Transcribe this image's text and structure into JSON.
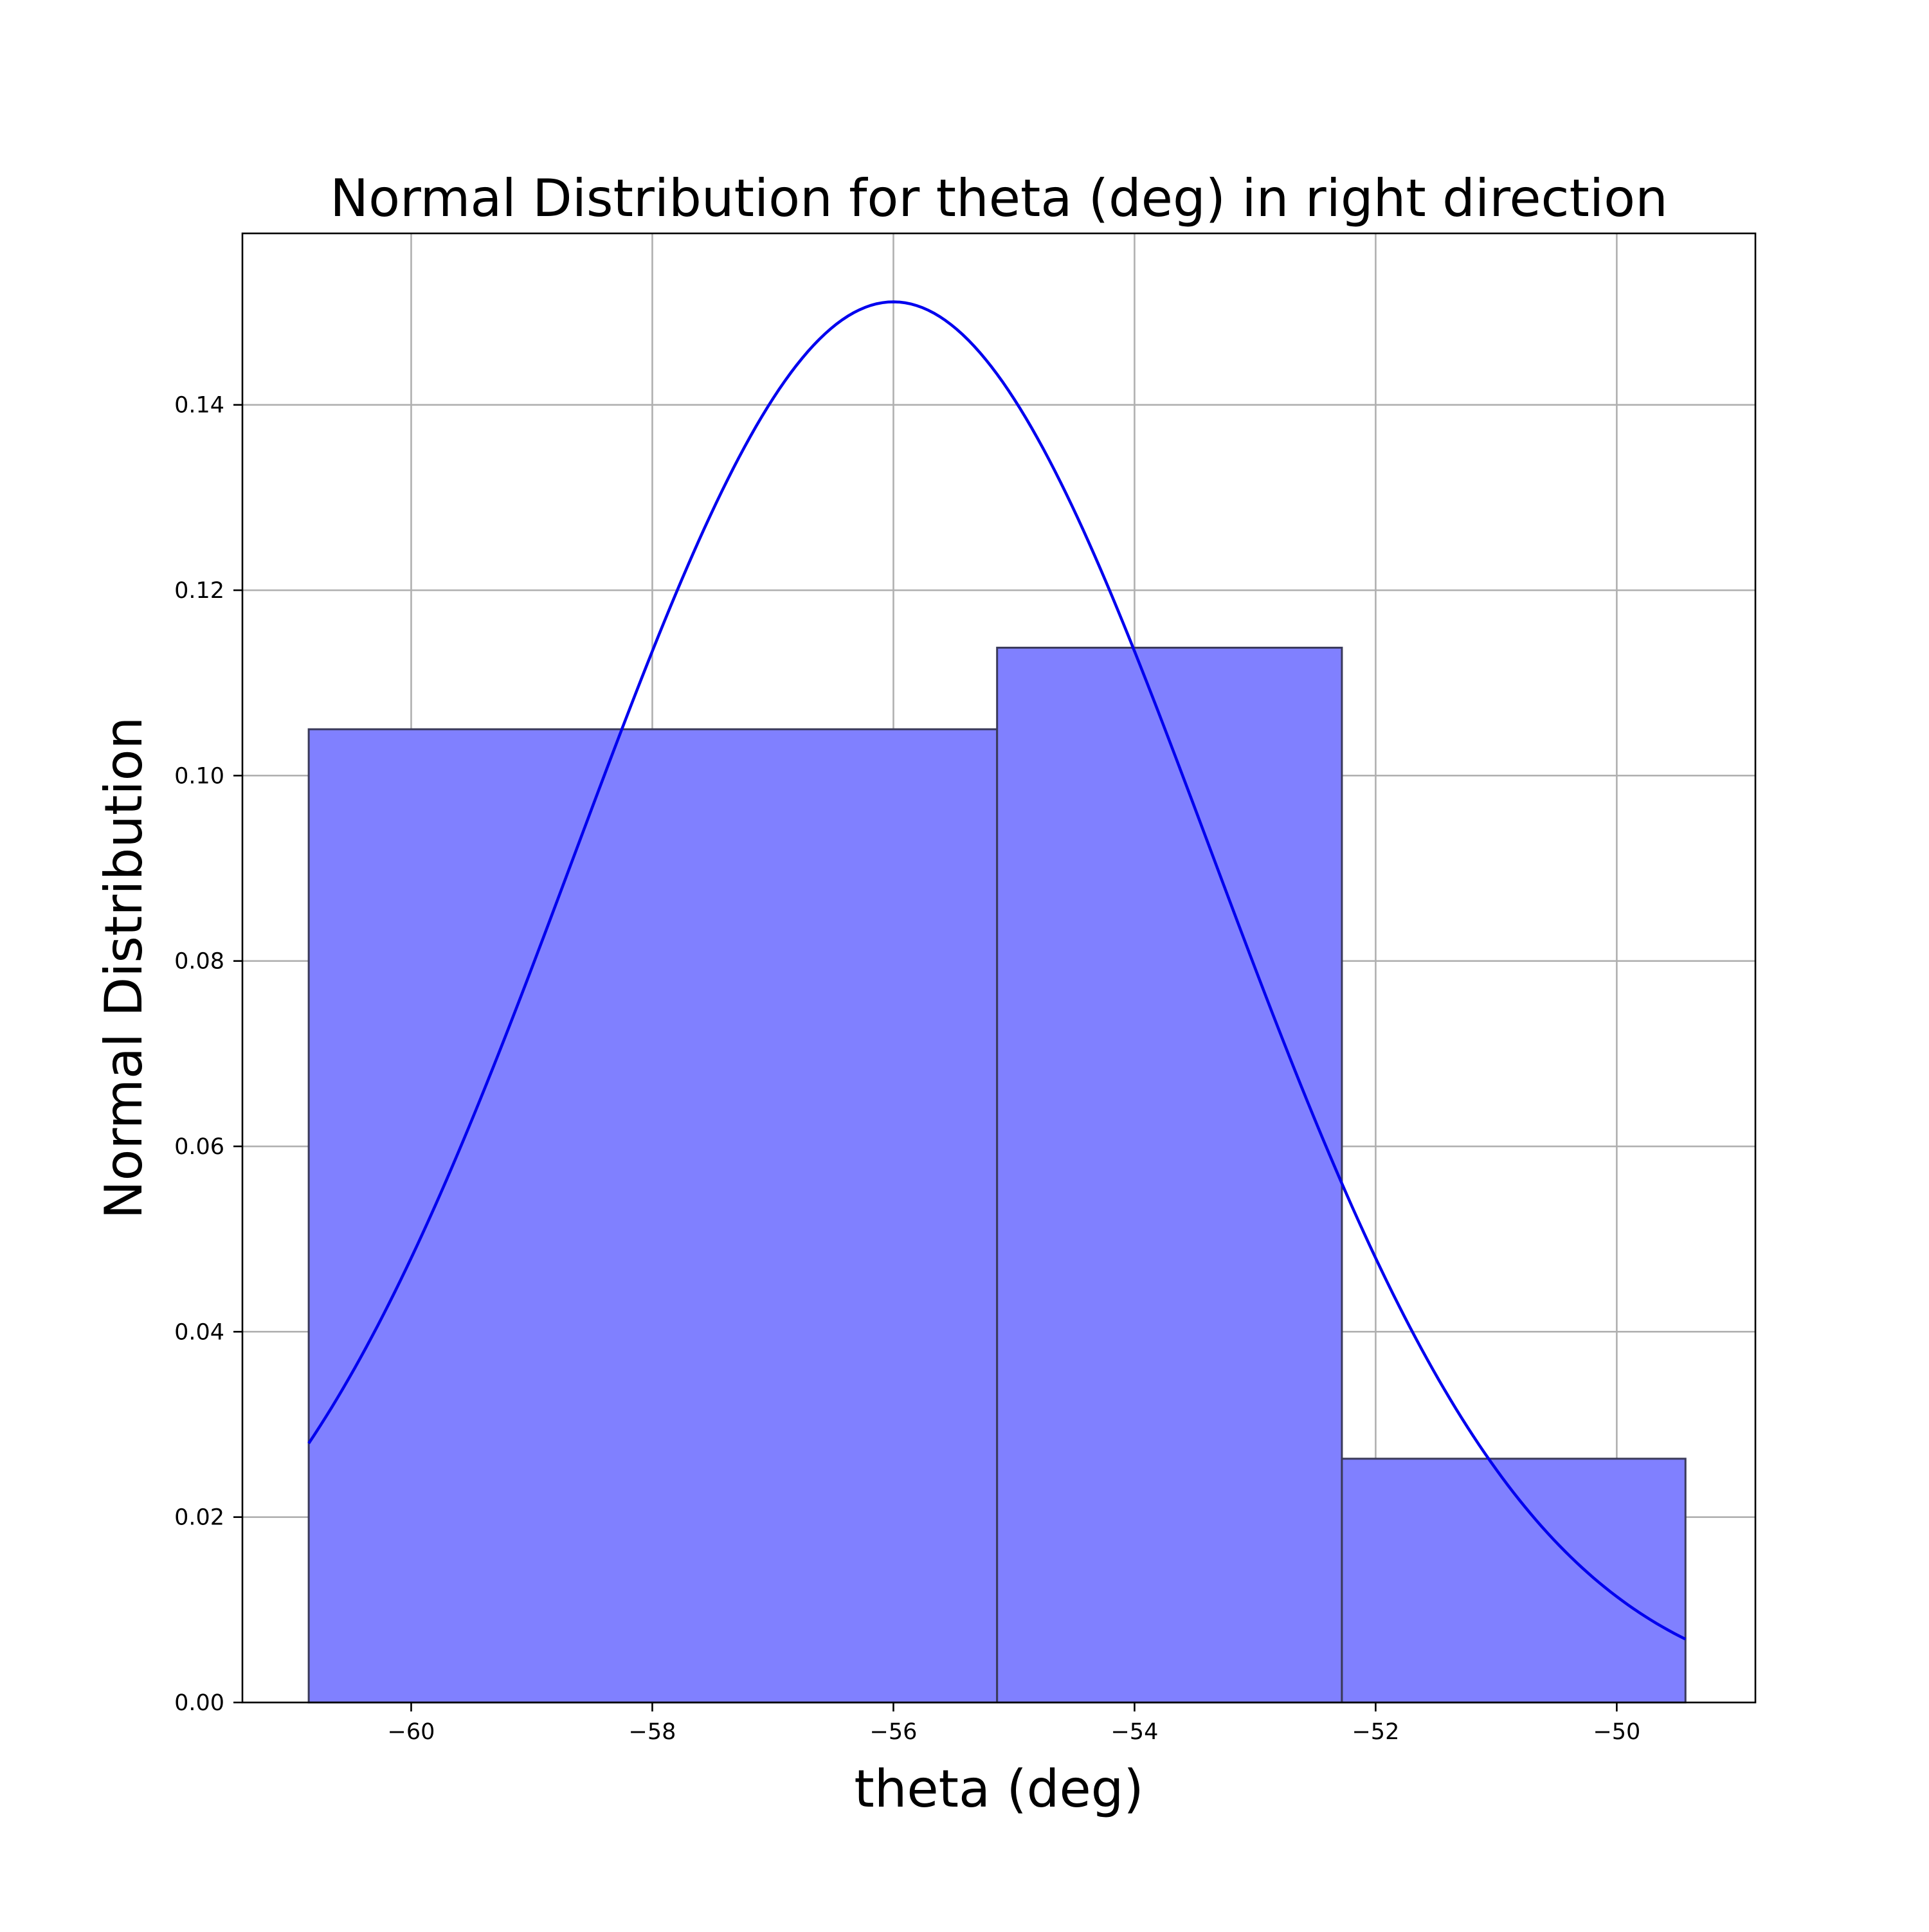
{
  "chart_data": {
    "type": "bar",
    "title": "Normal Distribution for theta (deg) in right direction",
    "xlabel": "theta (deg)",
    "ylabel": "Normal Distribution",
    "xlim": [
      -61.4,
      -48.85
    ],
    "ylim": [
      0.0,
      0.1585
    ],
    "xticks": [
      -60,
      -58,
      -56,
      -54,
      -52,
      -50
    ],
    "xtick_labels": [
      "−60",
      "−58",
      "−56",
      "−54",
      "−52",
      "−50"
    ],
    "yticks": [
      0.0,
      0.02,
      0.04,
      0.06,
      0.08,
      0.1,
      0.12,
      0.14
    ],
    "ytick_labels": [
      "0.00",
      "0.02",
      "0.04",
      "0.06",
      "0.08",
      "0.10",
      "0.12",
      "0.14"
    ],
    "grid": true,
    "histogram": {
      "bins": [
        {
          "x0": -60.85,
          "x1": -55.14,
          "value": 0.105
        },
        {
          "x0": -55.14,
          "x1": -52.28,
          "value": 0.1138
        },
        {
          "x0": -52.28,
          "x1": -49.43,
          "value": 0.0263
        }
      ]
    },
    "pdf": {
      "mean": -56.0,
      "std": 2.64,
      "x_range": [
        -60.85,
        -49.43
      ]
    },
    "colors": {
      "bar_fill": "#8080ff",
      "bar_edge": "#3a3a5a",
      "line": "#0000ee"
    }
  }
}
